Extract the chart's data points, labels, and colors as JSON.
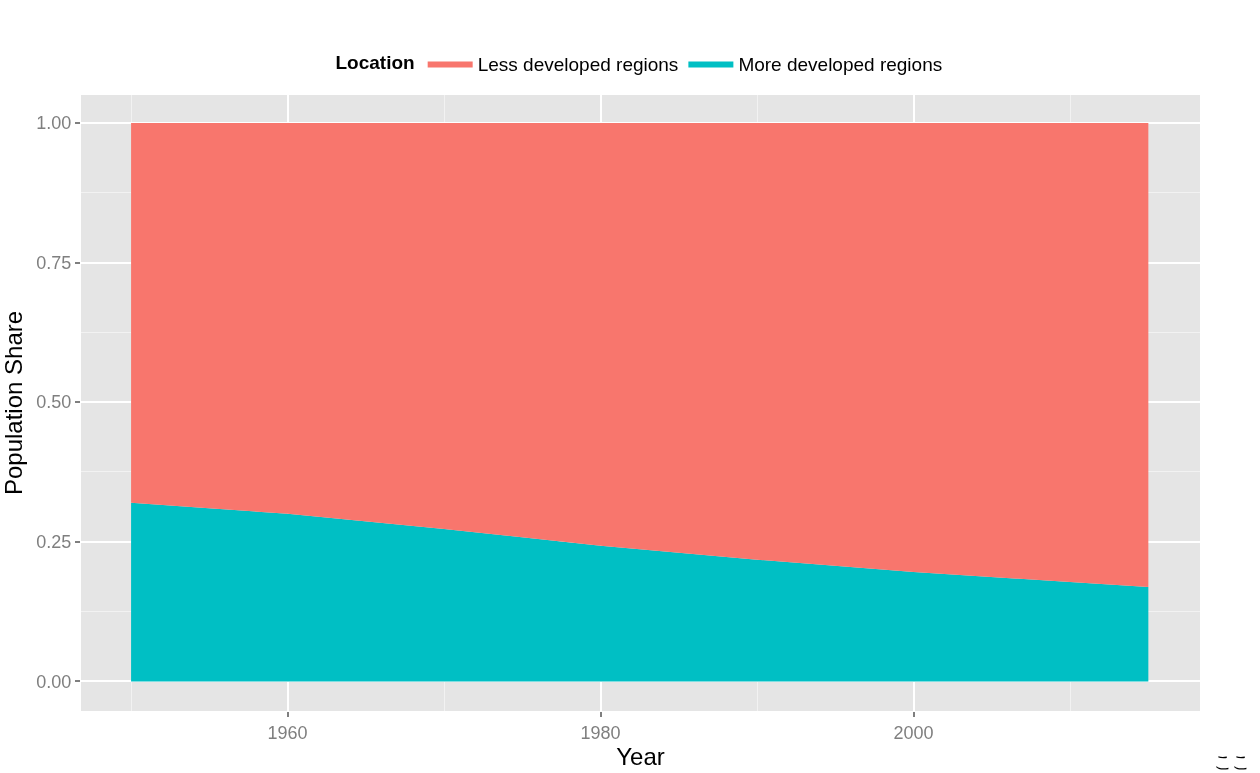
{
  "chart_data": {
    "type": "area",
    "stacked": true,
    "xlabel": "Year",
    "ylabel": "Population Share",
    "legend_title": "Location",
    "legend": "top",
    "x": [
      1950,
      1960,
      1970,
      1980,
      1990,
      2000,
      2010,
      2015
    ],
    "series": [
      {
        "name": "More developed regions",
        "color": "#00bfc4",
        "values": [
          0.32,
          0.3,
          0.273,
          0.243,
          0.218,
          0.196,
          0.178,
          0.169
        ]
      },
      {
        "name": "Less developed regions",
        "color": "#f8766d",
        "values": [
          0.68,
          0.7,
          0.727,
          0.757,
          0.782,
          0.804,
          0.822,
          0.831
        ]
      }
    ],
    "xlim": [
      1946.8,
      2018.3
    ],
    "xticks": [
      1960,
      1980,
      2000
    ],
    "ylim": [
      -0.053,
      1.05
    ],
    "yticks": [
      {
        "value": 0,
        "label": "0.00"
      },
      {
        "value": 0.25,
        "label": "0.25"
      },
      {
        "value": 0.5,
        "label": "0.50"
      },
      {
        "value": 0.75,
        "label": "0.75"
      },
      {
        "value": 1,
        "label": "1.00"
      }
    ],
    "grid": true,
    "annotations": [
      "ここ"
    ]
  }
}
